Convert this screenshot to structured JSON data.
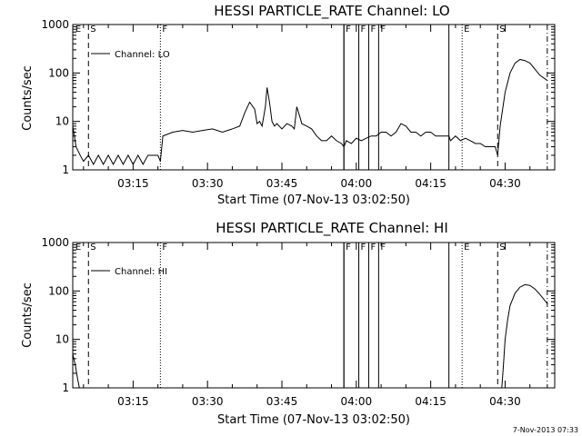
{
  "timestamp": "7-Nov-2013 07:33",
  "chart_data": [
    {
      "type": "line",
      "title": "HESSI PARTICLE_RATE Channel: LO",
      "xlabel": "Start Time (07-Nov-13 03:02:50)",
      "ylabel": "Counts/sec",
      "yscale": "log",
      "ylim": [
        1,
        1000
      ],
      "xlim": [
        "03:02:50",
        "04:40:00"
      ],
      "yticks": [
        "1",
        "10",
        "100",
        "1000"
      ],
      "xticks": [
        "03:15",
        "03:30",
        "03:45",
        "04:00",
        "04:15",
        "04:30"
      ],
      "legend": "Channel: LO",
      "legend_position": "top-left",
      "flags": [
        {
          "label": "E",
          "time": "03:03:00",
          "style": "none"
        },
        {
          "label": "S",
          "time": "03:06:00",
          "style": "dash"
        },
        {
          "label": "F",
          "time": "03:20:30",
          "style": "dot"
        },
        {
          "label": "F",
          "time": "03:57:30",
          "style": "solid"
        },
        {
          "label": "",
          "time": "03:57:30",
          "style": "solid"
        },
        {
          "label": "F",
          "time": "04:00:30",
          "style": "solid"
        },
        {
          "label": "F",
          "time": "04:02:30",
          "style": "solid"
        },
        {
          "label": "F",
          "time": "04:04:30",
          "style": "solid"
        },
        {
          "label": "",
          "time": "04:18:40",
          "style": "solid"
        },
        {
          "label": "E",
          "time": "04:21:20",
          "style": "dot"
        },
        {
          "label": "S",
          "time": "04:28:30",
          "style": "dash"
        },
        {
          "label": "",
          "time": "04:38:30",
          "style": "dashdot"
        }
      ],
      "series": [
        {
          "x": [
            "03:02:50",
            "03:03:30",
            "03:04:20",
            "03:05:00",
            "03:06:00",
            "03:07:00",
            "03:08:00",
            "03:09:00",
            "03:10:00",
            "03:11:00",
            "03:12:00",
            "03:13:00",
            "03:14:00",
            "03:15:00",
            "03:16:00",
            "03:17:00",
            "03:18:00",
            "03:19:00",
            "03:20:00",
            "03:20:30",
            "03:21:00",
            "03:23:00",
            "03:25:00",
            "03:27:00",
            "03:29:00",
            "03:31:00",
            "03:33:00",
            "03:35:00",
            "03:36:30",
            "03:37:30",
            "03:38:30",
            "03:39:30",
            "03:40:00",
            "03:40:30",
            "03:41:00",
            "03:41:40",
            "03:42:00",
            "03:42:30",
            "03:43:00",
            "03:43:30",
            "03:44:00",
            "03:45:00",
            "03:46:00",
            "03:47:00",
            "03:47:30",
            "03:48:00",
            "03:48:40",
            "03:49:00",
            "03:50:00",
            "03:51:00",
            "03:52:00",
            "03:53:00",
            "03:54:00",
            "03:55:00",
            "03:56:00",
            "03:57:00",
            "03:57:30",
            "03:58:00",
            "03:59:00",
            "04:00:00",
            "04:01:00",
            "04:02:00",
            "04:03:00",
            "04:04:00",
            "04:05:00",
            "04:06:00",
            "04:07:00",
            "04:08:00",
            "04:09:00",
            "04:10:00",
            "04:11:00",
            "04:12:00",
            "04:13:00",
            "04:14:00",
            "04:15:00",
            "04:16:00",
            "04:17:00",
            "04:18:00",
            "04:18:40",
            "04:19:00",
            "04:20:00",
            "04:21:00",
            "04:22:00",
            "04:23:00",
            "04:24:00",
            "04:25:00",
            "04:26:00",
            "04:27:00",
            "04:28:00",
            "04:28:30",
            "04:29:00",
            "04:30:00",
            "04:31:00",
            "04:32:00",
            "04:33:00",
            "04:34:00",
            "04:35:00",
            "04:36:00",
            "04:37:00",
            "04:38:30"
          ],
          "y": [
            8,
            3,
            2,
            1.5,
            2,
            1.3,
            2,
            1.3,
            2,
            1.3,
            2,
            1.3,
            2,
            1.3,
            2,
            1.3,
            2,
            2,
            2,
            1.5,
            5,
            6,
            6.5,
            6,
            6.5,
            7,
            6,
            7,
            8,
            15,
            25,
            18,
            9,
            10,
            8,
            20,
            50,
            25,
            10,
            8,
            9,
            7,
            9,
            8,
            7,
            20,
            12,
            9,
            8,
            7,
            5,
            4,
            4,
            5,
            4,
            3.5,
            3,
            4,
            3.5,
            4.5,
            4,
            4.5,
            5,
            5,
            6,
            6,
            5,
            6,
            9,
            8,
            6,
            6,
            5,
            6,
            6,
            5,
            5,
            5,
            5,
            4,
            5,
            4,
            4.5,
            4,
            3.5,
            3.5,
            3,
            3,
            3,
            2,
            8,
            40,
            100,
            160,
            190,
            180,
            160,
            120,
            90,
            70
          ]
        }
      ]
    },
    {
      "type": "line",
      "title": "HESSI PARTICLE_RATE Channel: HI",
      "xlabel": "Start Time (07-Nov-13 03:02:50)",
      "ylabel": "Counts/sec",
      "yscale": "log",
      "ylim": [
        1,
        1000
      ],
      "xlim": [
        "03:02:50",
        "04:40:00"
      ],
      "yticks": [
        "1",
        "10",
        "100",
        "1000"
      ],
      "xticks": [
        "03:15",
        "03:30",
        "03:45",
        "04:00",
        "04:15",
        "04:30"
      ],
      "legend": "Channel: HI",
      "legend_position": "top-left",
      "flags": [
        {
          "label": "E",
          "time": "03:03:00",
          "style": "none"
        },
        {
          "label": "S",
          "time": "03:06:00",
          "style": "dash"
        },
        {
          "label": "F",
          "time": "03:20:30",
          "style": "dot"
        },
        {
          "label": "F",
          "time": "03:57:30",
          "style": "solid"
        },
        {
          "label": "",
          "time": "03:57:30",
          "style": "solid"
        },
        {
          "label": "F",
          "time": "04:00:30",
          "style": "solid"
        },
        {
          "label": "F",
          "time": "04:02:30",
          "style": "solid"
        },
        {
          "label": "F",
          "time": "04:04:30",
          "style": "solid"
        },
        {
          "label": "",
          "time": "04:18:40",
          "style": "solid"
        },
        {
          "label": "E",
          "time": "04:21:20",
          "style": "dot"
        },
        {
          "label": "S",
          "time": "04:28:30",
          "style": "dash"
        },
        {
          "label": "",
          "time": "04:38:30",
          "style": "dashdot"
        }
      ],
      "series": [
        {
          "x": [
            "03:02:50",
            "03:03:20",
            "03:03:50",
            "03:04:10",
            "04:29:20",
            "04:29:40",
            "04:30:00",
            "04:30:30",
            "04:31:00",
            "04:32:00",
            "04:33:00",
            "04:34:00",
            "04:35:00",
            "04:36:00",
            "04:37:00",
            "04:38:30"
          ],
          "y": [
            5,
            3,
            1.5,
            1,
            1,
            3,
            10,
            25,
            50,
            90,
            120,
            135,
            130,
            110,
            85,
            55
          ]
        }
      ]
    }
  ]
}
